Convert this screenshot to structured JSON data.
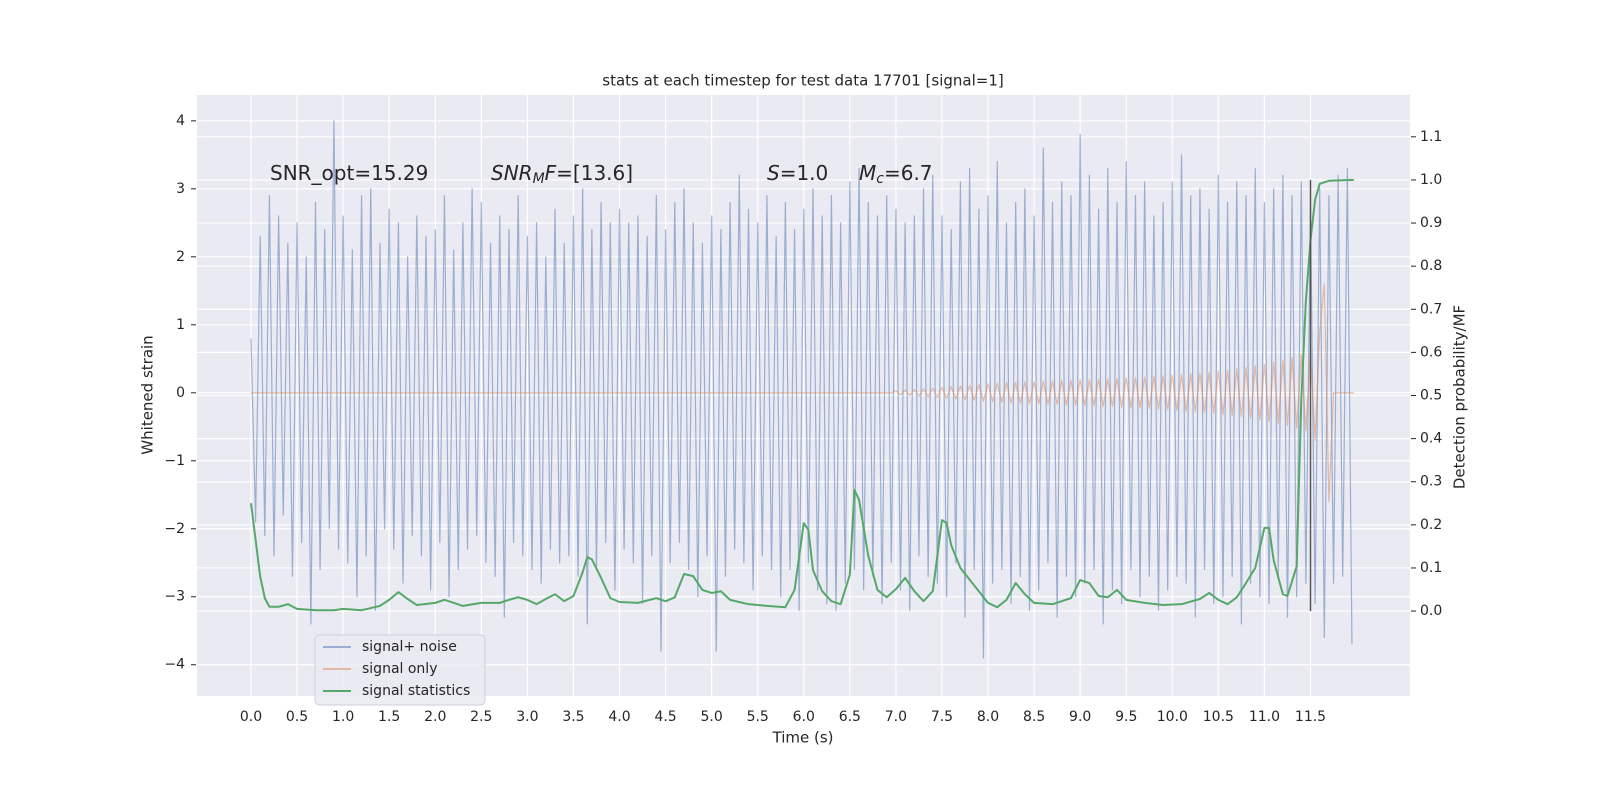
{
  "chart_data": {
    "type": "line",
    "title": "stats at each timestep for test data 17701 [signal=1]",
    "xlabel": "Time (s)",
    "ylabel": "Whitened strain",
    "y2label": "Detection probability/MF",
    "xlim": [
      -0.586,
      12.58
    ],
    "ylim": [
      -4.46,
      4.38
    ],
    "y2lim": [
      -0.197,
      1.197
    ],
    "xticks": [
      {
        "value": 0,
        "label": "0.0"
      },
      {
        "value": 0.5,
        "label": "0.5"
      },
      {
        "value": 1,
        "label": "1.0"
      },
      {
        "value": 1.5,
        "label": "1.5"
      },
      {
        "value": 2,
        "label": "2.0"
      },
      {
        "value": 2.5,
        "label": "2.5"
      },
      {
        "value": 3,
        "label": "3.0"
      },
      {
        "value": 3.5,
        "label": "3.5"
      },
      {
        "value": 4,
        "label": "4.0"
      },
      {
        "value": 4.5,
        "label": "4.5"
      },
      {
        "value": 5,
        "label": "5.0"
      },
      {
        "value": 5.5,
        "label": "5.5"
      },
      {
        "value": 6,
        "label": "6.0"
      },
      {
        "value": 6.5,
        "label": "6.5"
      },
      {
        "value": 7,
        "label": "7.0"
      },
      {
        "value": 7.5,
        "label": "7.5"
      },
      {
        "value": 8,
        "label": "8.0"
      },
      {
        "value": 8.5,
        "label": "8.5"
      },
      {
        "value": 9,
        "label": "9.0"
      },
      {
        "value": 9.5,
        "label": "9.5"
      },
      {
        "value": 10,
        "label": "10.0"
      },
      {
        "value": 10.5,
        "label": "10.5"
      },
      {
        "value": 11,
        "label": "11.0"
      },
      {
        "value": 11.5,
        "label": "11.5"
      }
    ],
    "yticks": [
      {
        "value": -4,
        "label": "−4"
      },
      {
        "value": -3,
        "label": "−3"
      },
      {
        "value": -2,
        "label": "−2"
      },
      {
        "value": -1,
        "label": "−1"
      },
      0,
      1,
      2,
      3,
      4
    ],
    "y2ticks": [
      {
        "value": 0,
        "label": "0.0"
      },
      {
        "value": 0.1,
        "label": "0.1"
      },
      {
        "value": 0.2,
        "label": "0.2"
      },
      {
        "value": 0.3,
        "label": "0.3"
      },
      {
        "value": 0.4,
        "label": "0.4"
      },
      {
        "value": 0.5,
        "label": "0.5"
      },
      {
        "value": 0.6,
        "label": "0.6"
      },
      {
        "value": 0.7,
        "label": "0.7"
      },
      {
        "value": 0.8,
        "label": "0.8"
      },
      {
        "value": 0.9,
        "label": "0.9"
      },
      {
        "value": 1,
        "label": "1.0"
      },
      {
        "value": 1.1,
        "label": "1.1"
      }
    ],
    "grid": true,
    "background": "#eaeaf2",
    "legend": "lower left",
    "annotations": [
      [
        {
          "text": "SNR_opt=15.29"
        }
      ],
      [
        {
          "text": "SNR",
          "italic": true
        },
        {
          "text": "M",
          "italic": true,
          "sub": true
        },
        {
          "text": "F",
          "italic": true
        },
        {
          "text": "=[13.6]"
        }
      ],
      [
        {
          "text": "S",
          "italic": true
        },
        {
          "text": "=1.0"
        }
      ],
      [
        {
          "text": "M",
          "italic": true
        },
        {
          "text": "c",
          "italic": true,
          "sub": true
        },
        {
          "text": "=6.7"
        }
      ]
    ],
    "vlines": [
      {
        "x": 11.5,
        "ymin": 0,
        "ymax": 1,
        "axis": "y2",
        "color": "#555555"
      }
    ],
    "series": [
      {
        "name": "signal+ noise",
        "color": "#4c72b0",
        "alpha": 0.5,
        "x": [
          0,
          0.05,
          0.1,
          0.15,
          0.2,
          0.25,
          0.3,
          0.35,
          0.4,
          0.45,
          0.5,
          0.55,
          0.6,
          0.65,
          0.7,
          0.75,
          0.8,
          0.85,
          0.9,
          0.95,
          1,
          1.05,
          1.1,
          1.15,
          1.2,
          1.25,
          1.3,
          1.35,
          1.4,
          1.45,
          1.5,
          1.55,
          1.6,
          1.65,
          1.7,
          1.75,
          1.8,
          1.85,
          1.9,
          1.95,
          2,
          2.05,
          2.1,
          2.15,
          2.2,
          2.25,
          2.3,
          2.35,
          2.4,
          2.45,
          2.5,
          2.55,
          2.6,
          2.65,
          2.7,
          2.75,
          2.8,
          2.85,
          2.9,
          2.95,
          3,
          3.05,
          3.1,
          3.15,
          3.2,
          3.25,
          3.3,
          3.35,
          3.4,
          3.45,
          3.5,
          3.55,
          3.6,
          3.65,
          3.7,
          3.75,
          3.8,
          3.85,
          3.9,
          3.95,
          4,
          4.05,
          4.1,
          4.15,
          4.2,
          4.25,
          4.3,
          4.35,
          4.4,
          4.45,
          4.5,
          4.55,
          4.6,
          4.65,
          4.7,
          4.75,
          4.8,
          4.85,
          4.9,
          4.95,
          5,
          5.05,
          5.1,
          5.15,
          5.2,
          5.25,
          5.3,
          5.35,
          5.4,
          5.45,
          5.5,
          5.55,
          5.6,
          5.65,
          5.7,
          5.75,
          5.8,
          5.85,
          5.9,
          5.95,
          6,
          6.05,
          6.1,
          6.15,
          6.2,
          6.25,
          6.3,
          6.35,
          6.4,
          6.45,
          6.5,
          6.55,
          6.6,
          6.65,
          6.7,
          6.75,
          6.8,
          6.85,
          6.9,
          6.95,
          7,
          7.05,
          7.1,
          7.15,
          7.2,
          7.25,
          7.3,
          7.35,
          7.4,
          7.45,
          7.5,
          7.55,
          7.6,
          7.65,
          7.7,
          7.75,
          7.8,
          7.85,
          7.9,
          7.95,
          8,
          8.05,
          8.1,
          8.15,
          8.2,
          8.25,
          8.3,
          8.35,
          8.4,
          8.45,
          8.5,
          8.55,
          8.6,
          8.65,
          8.7,
          8.75,
          8.8,
          8.85,
          8.9,
          8.95,
          9,
          9.05,
          9.1,
          9.15,
          9.2,
          9.25,
          9.3,
          9.35,
          9.4,
          9.45,
          9.5,
          9.55,
          9.6,
          9.65,
          9.7,
          9.75,
          9.8,
          9.85,
          9.9,
          9.95,
          10,
          10.05,
          10.1,
          10.15,
          10.2,
          10.25,
          10.3,
          10.35,
          10.4,
          10.45,
          10.5,
          10.55,
          10.6,
          10.65,
          10.7,
          10.75,
          10.8,
          10.85,
          10.9,
          10.95,
          11,
          11.05,
          11.1,
          11.15,
          11.2,
          11.25,
          11.3,
          11.35,
          11.4,
          11.45,
          11.5,
          11.55,
          11.6,
          11.65,
          11.7,
          11.75,
          11.8,
          11.85,
          11.9,
          11.95
        ],
        "values": [
          0.8,
          -1.9,
          2.3,
          -2.1,
          2.9,
          -2.4,
          2.6,
          -1.8,
          2.2,
          -2.7,
          2.5,
          -2.2,
          2.0,
          -3.4,
          2.8,
          -2.6,
          2.4,
          -2.0,
          4.0,
          -2.3,
          2.6,
          -2.5,
          2.1,
          -3.0,
          2.9,
          -2.4,
          3.0,
          -3.2,
          2.2,
          -2.0,
          2.7,
          -2.3,
          2.5,
          -2.8,
          2.0,
          -2.1,
          2.6,
          -2.4,
          2.3,
          -2.9,
          2.4,
          -2.2,
          2.9,
          -3.0,
          2.1,
          -2.6,
          2.5,
          -2.3,
          3.0,
          -2.1,
          2.8,
          -2.5,
          2.2,
          -2.7,
          2.6,
          -3.3,
          2.4,
          -2.2,
          2.9,
          -2.4,
          2.3,
          -2.6,
          2.5,
          -2.8,
          2.0,
          -2.3,
          2.7,
          -2.5,
          2.2,
          -2.4,
          2.6,
          -2.7,
          3.0,
          -3.4,
          2.4,
          -2.6,
          2.8,
          -2.2,
          2.5,
          -2.9,
          2.7,
          -2.3,
          2.5,
          -2.5,
          2.6,
          -3.1,
          2.3,
          -2.4,
          2.9,
          -3.8,
          2.4,
          -2.5,
          2.8,
          -2.2,
          3.0,
          -2.6,
          2.5,
          -3.0,
          2.2,
          -2.4,
          2.6,
          -3.8,
          2.4,
          -2.7,
          2.8,
          -2.3,
          3.2,
          -2.5,
          2.7,
          -2.9,
          2.5,
          -2.4,
          2.9,
          -2.6,
          2.3,
          -3.0,
          2.8,
          -2.6,
          2.4,
          -3.2,
          2.7,
          -2.5,
          3.0,
          -2.9,
          2.6,
          -3.1,
          2.9,
          -3.2,
          2.5,
          -2.8,
          3.1,
          -2.6,
          3.3,
          -2.9,
          2.8,
          -2.7,
          2.6,
          -3.1,
          2.9,
          -2.5,
          2.7,
          -2.9,
          2.5,
          -3.2,
          2.6,
          -2.4,
          3.0,
          -2.7,
          3.2,
          -2.8,
          2.6,
          -3.0,
          2.4,
          -2.5,
          3.1,
          -3.3,
          3.3,
          -2.6,
          2.7,
          -3.9,
          2.9,
          -2.8,
          3.4,
          -2.6,
          2.5,
          -3.1,
          2.8,
          -2.7,
          3.0,
          -3.2,
          2.6,
          -2.9,
          3.6,
          -2.5,
          2.8,
          -3.3,
          3.1,
          -2.7,
          2.9,
          -3.0,
          3.8,
          -2.8,
          3.2,
          -2.6,
          2.7,
          -3.4,
          3.3,
          -2.9,
          2.8,
          -3.1,
          3.4,
          -2.6,
          2.9,
          -3.0,
          3.1,
          -2.7,
          2.6,
          -3.2,
          2.8,
          -2.9,
          3.1,
          -2.7,
          3.5,
          -2.8,
          2.9,
          -3.3,
          3.0,
          -2.6,
          2.7,
          -3.1,
          3.2,
          -3.0,
          2.8,
          -2.7,
          3.1,
          -3.4,
          2.9,
          -2.8,
          3.3,
          -3.0,
          2.8,
          -3.1,
          3.0,
          -2.7,
          3.2,
          -3.3,
          2.9,
          -3.0,
          3.1,
          -2.8,
          2.7,
          -3.1,
          3.0,
          -3.6,
          2.9,
          -2.8,
          3.2,
          -2.7,
          3.3,
          -3.7
        ]
      },
      {
        "name": "signal only",
        "color": "#dd8452",
        "alpha": 0.5,
        "x": [
          0,
          6.95,
          7,
          7.05,
          7.1,
          7.15,
          7.2,
          7.25,
          7.3,
          7.35,
          7.4,
          7.45,
          7.5,
          7.55,
          7.6,
          7.65,
          7.7,
          7.75,
          7.8,
          7.85,
          7.9,
          7.95,
          8,
          8.05,
          8.1,
          8.15,
          8.2,
          8.25,
          8.3,
          8.35,
          8.4,
          8.45,
          8.5,
          8.55,
          8.6,
          8.65,
          8.7,
          8.75,
          8.8,
          8.85,
          8.9,
          8.95,
          9,
          9.05,
          9.1,
          9.15,
          9.2,
          9.25,
          9.3,
          9.35,
          9.4,
          9.45,
          9.5,
          9.55,
          9.6,
          9.65,
          9.7,
          9.75,
          9.8,
          9.85,
          9.9,
          9.95,
          10,
          10.05,
          10.1,
          10.15,
          10.2,
          10.25,
          10.3,
          10.35,
          10.4,
          10.45,
          10.5,
          10.55,
          10.6,
          10.65,
          10.7,
          10.75,
          10.8,
          10.85,
          10.9,
          10.95,
          11,
          11.05,
          11.1,
          11.15,
          11.2,
          11.25,
          11.3,
          11.35,
          11.4,
          11.45,
          11.5,
          11.55,
          11.6,
          11.65,
          11.7,
          11.75,
          11.97
        ],
        "values": [
          0,
          0,
          0.03,
          -0.03,
          0.04,
          -0.04,
          0.05,
          -0.05,
          0.06,
          -0.06,
          0.07,
          -0.07,
          0.08,
          -0.08,
          0.09,
          -0.09,
          0.1,
          -0.1,
          0.11,
          -0.11,
          0.12,
          -0.12,
          0.13,
          -0.13,
          0.14,
          -0.14,
          0.15,
          -0.15,
          0.15,
          -0.15,
          0.16,
          -0.16,
          0.16,
          -0.16,
          0.17,
          -0.17,
          0.17,
          -0.17,
          0.18,
          -0.18,
          0.18,
          -0.18,
          0.19,
          -0.19,
          0.19,
          -0.19,
          0.2,
          -0.2,
          0.2,
          -0.2,
          0.21,
          -0.21,
          0.22,
          -0.22,
          0.22,
          -0.22,
          0.23,
          -0.23,
          0.24,
          -0.24,
          0.25,
          -0.25,
          0.26,
          -0.26,
          0.27,
          -0.27,
          0.28,
          -0.28,
          0.29,
          -0.29,
          0.3,
          -0.3,
          0.32,
          -0.32,
          0.33,
          -0.33,
          0.35,
          -0.35,
          0.37,
          -0.37,
          0.4,
          -0.4,
          0.42,
          -0.42,
          0.45,
          -0.45,
          0.48,
          -0.48,
          0.52,
          -0.52,
          0.56,
          -0.56,
          0.62,
          -0.7,
          0.9,
          1.6,
          -1.6,
          0,
          0
        ]
      },
      {
        "name": "signal statistics",
        "color": "#55a868",
        "alpha": 1,
        "axis": "y2",
        "x": [
          0,
          0.05,
          0.1,
          0.15,
          0.2,
          0.3,
          0.4,
          0.5,
          0.7,
          0.9,
          1,
          1.2,
          1.3,
          1.4,
          1.5,
          1.6,
          1.7,
          1.8,
          2,
          2.1,
          2.3,
          2.5,
          2.7,
          2.8,
          2.9,
          3,
          3.1,
          3.2,
          3.3,
          3.4,
          3.5,
          3.6,
          3.65,
          3.7,
          3.8,
          3.9,
          4,
          4.2,
          4.4,
          4.5,
          4.6,
          4.7,
          4.8,
          4.9,
          5,
          5.1,
          5.2,
          5.4,
          5.6,
          5.8,
          5.9,
          6,
          6.05,
          6.1,
          6.2,
          6.3,
          6.4,
          6.5,
          6.55,
          6.6,
          6.7,
          6.8,
          6.9,
          7,
          7.1,
          7.2,
          7.3,
          7.4,
          7.5,
          7.55,
          7.6,
          7.7,
          7.9,
          8,
          8.1,
          8.2,
          8.3,
          8.4,
          8.5,
          8.7,
          8.9,
          9,
          9.1,
          9.2,
          9.3,
          9.4,
          9.5,
          9.7,
          9.9,
          10.1,
          10.3,
          10.4,
          10.5,
          10.6,
          10.7,
          10.8,
          10.9,
          11,
          11.05,
          11.1,
          11.2,
          11.25,
          11.35,
          11.4,
          11.45,
          11.5,
          11.55,
          11.6,
          11.7,
          11.97
        ],
        "values": [
          0.25,
          0.165,
          0.08,
          0.03,
          0.01,
          0.01,
          0.016,
          0.005,
          0.002,
          0.002,
          0.005,
          0.002,
          0.007,
          0.012,
          0.026,
          0.044,
          0.028,
          0.014,
          0.019,
          0.026,
          0.012,
          0.019,
          0.019,
          0.026,
          0.032,
          0.026,
          0.016,
          0.028,
          0.039,
          0.023,
          0.035,
          0.09,
          0.125,
          0.12,
          0.077,
          0.03,
          0.021,
          0.019,
          0.03,
          0.023,
          0.032,
          0.086,
          0.081,
          0.049,
          0.042,
          0.046,
          0.026,
          0.016,
          0.012,
          0.009,
          0.049,
          0.204,
          0.188,
          0.095,
          0.046,
          0.023,
          0.016,
          0.084,
          0.281,
          0.258,
          0.128,
          0.049,
          0.032,
          0.051,
          0.077,
          0.046,
          0.023,
          0.046,
          0.211,
          0.204,
          0.153,
          0.1,
          0.046,
          0.019,
          0.009,
          0.026,
          0.065,
          0.039,
          0.019,
          0.016,
          0.03,
          0.072,
          0.065,
          0.035,
          0.032,
          0.049,
          0.026,
          0.019,
          0.014,
          0.016,
          0.028,
          0.042,
          0.026,
          0.016,
          0.032,
          0.065,
          0.1,
          0.193,
          0.193,
          0.118,
          0.039,
          0.035,
          0.104,
          0.49,
          0.72,
          0.86,
          0.954,
          0.991,
          0.998,
          1.0
        ]
      }
    ]
  }
}
